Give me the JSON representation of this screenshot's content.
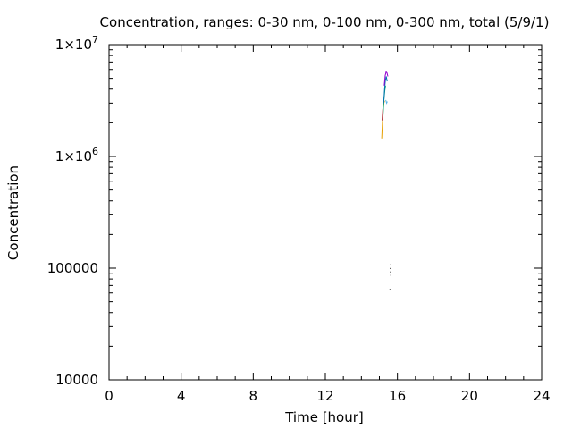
{
  "chart_data": {
    "type": "line",
    "title": "Concentration, ranges: 0-30 nm, 0-100 nm, 0-300 nm, total (5/9/1)",
    "xlabel": "Time [hour]",
    "ylabel": "Concentration",
    "xlim": [
      0,
      24
    ],
    "ylim": [
      10000,
      10000000
    ],
    "yscale": "log",
    "grid": false,
    "x_ticks": [
      {
        "value": 0,
        "label": "0"
      },
      {
        "value": 4,
        "label": "4"
      },
      {
        "value": 8,
        "label": "8"
      },
      {
        "value": 12,
        "label": "12"
      },
      {
        "value": 16,
        "label": "16"
      },
      {
        "value": 20,
        "label": "20"
      },
      {
        "value": 24,
        "label": "24"
      }
    ],
    "y_ticks": [
      {
        "value": 10000,
        "label": "10000"
      },
      {
        "value": 100000,
        "label": "100000"
      },
      {
        "value": 1000000,
        "label": "1×10",
        "exp": "6"
      },
      {
        "value": 10000000,
        "label": "1×10",
        "exp": "7"
      }
    ],
    "series": [
      {
        "color": "#e69f00",
        "x": [
          15.13,
          15.17,
          15.21,
          15.25,
          15.29
        ],
        "y": [
          1450000,
          2000000,
          2600000,
          3000000,
          3150000
        ]
      },
      {
        "color": "#990000",
        "x": [
          15.16,
          15.19,
          15.22
        ],
        "y": [
          2100000,
          2600000,
          2900000
        ]
      },
      {
        "color": "#009e73",
        "x": [
          15.2,
          15.25,
          15.3,
          15.34
        ],
        "y": [
          2300000,
          3200000,
          3900000,
          4300000
        ]
      },
      {
        "color": "#0072b2",
        "x": [
          15.24,
          15.29,
          15.33,
          15.38,
          15.43
        ],
        "y": [
          3000000,
          4000000,
          4800000,
          5200000,
          4700000
        ]
      },
      {
        "color": "#9400d3",
        "x": [
          15.27,
          15.32,
          15.37,
          15.42,
          15.47
        ],
        "y": [
          4300000,
          5300000,
          5700000,
          5600000,
          5200000
        ]
      },
      {
        "color": "#56b4e9",
        "x": [
          15.35,
          15.4,
          15.44
        ],
        "y": [
          3200000,
          3000000,
          3100000
        ]
      },
      {
        "color": "#000000",
        "x": [
          15.6,
          15.61,
          15.62
        ],
        "y": [
          108000,
          97000,
          86000
        ]
      },
      {
        "color": "#000000",
        "x": [
          15.58,
          15.6
        ],
        "y": [
          65000,
          63000
        ]
      }
    ]
  }
}
